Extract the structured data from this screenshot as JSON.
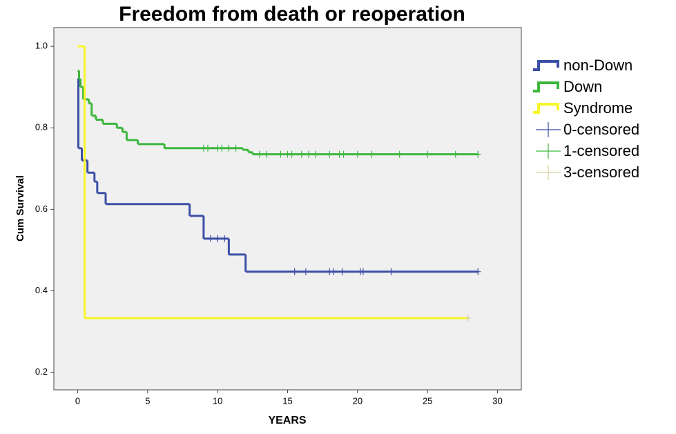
{
  "chart_data": {
    "type": "step",
    "title": "Freedom from death or reoperation",
    "x_label": "YEARS",
    "y_label": "Cum Survival",
    "xlim": [
      -1.7,
      31.7
    ],
    "ylim": [
      0.157,
      1.046
    ],
    "xticks": [
      0,
      5,
      10,
      15,
      20,
      25,
      30
    ],
    "yticks": [
      0.2,
      0.4,
      0.6,
      0.8,
      {
        "value": 1,
        "label": "1.0"
      }
    ],
    "series": [
      {
        "name": "non-Down",
        "color": "#3b4ea6",
        "style": "step",
        "x": [
          0,
          0.05,
          0.3,
          0.7,
          1.2,
          1.4,
          2.0,
          8.0,
          9.0,
          10.8,
          12.0,
          28.6
        ],
        "values": [
          0.92,
          0.75,
          0.72,
          0.69,
          0.668,
          0.64,
          0.613,
          0.584,
          0.528,
          0.489,
          0.447,
          0.447
        ]
      },
      {
        "name": "Down",
        "color": "#3cb63c",
        "style": "step",
        "x": [
          0,
          0.1,
          0.2,
          0.4,
          0.8,
          1.0,
          1.3,
          1.8,
          2.8,
          3.2,
          3.5,
          4.3,
          6.2,
          11.8,
          12.2,
          12.5,
          28.6
        ],
        "values": [
          0.94,
          0.92,
          0.9,
          0.87,
          0.86,
          0.83,
          0.82,
          0.81,
          0.8,
          0.79,
          0.77,
          0.76,
          0.75,
          0.746,
          0.74,
          0.735,
          0.735
        ]
      },
      {
        "name": "Syndrome",
        "color": "#f6f628",
        "style": "step",
        "x": [
          0,
          0.5,
          27.9
        ],
        "values": [
          1,
          0.333,
          0.333
        ]
      },
      {
        "name": "0-censored",
        "color": "#3b4ea6",
        "style": "censor",
        "x": [
          9.5,
          10,
          10.5,
          15.5,
          16.3,
          18,
          18.3,
          18.9,
          20.2,
          20.4,
          22.4,
          28.6
        ],
        "values": [
          0.528,
          0.528,
          0.528,
          0.447,
          0.447,
          0.447,
          0.447,
          0.447,
          0.447,
          0.447,
          0.447,
          0.447
        ]
      },
      {
        "name": "1-censored",
        "color": "#3cb63c",
        "style": "censor",
        "x": [
          9,
          9.3,
          10,
          10.3,
          10.8,
          11.3,
          13,
          13.5,
          14.5,
          15,
          15.3,
          16,
          16.5,
          17,
          18,
          18.7,
          19,
          20,
          21,
          23,
          25,
          27,
          28.6
        ],
        "values": [
          0.75,
          0.75,
          0.75,
          0.75,
          0.75,
          0.75,
          0.735,
          0.735,
          0.735,
          0.735,
          0.735,
          0.735,
          0.735,
          0.735,
          0.735,
          0.735,
          0.735,
          0.735,
          0.735,
          0.735,
          0.735,
          0.735,
          0.735
        ]
      },
      {
        "name": "3-censored",
        "color": "#d8d09a",
        "style": "censor",
        "x": [
          27.9
        ],
        "values": [
          0.333
        ]
      }
    ]
  }
}
